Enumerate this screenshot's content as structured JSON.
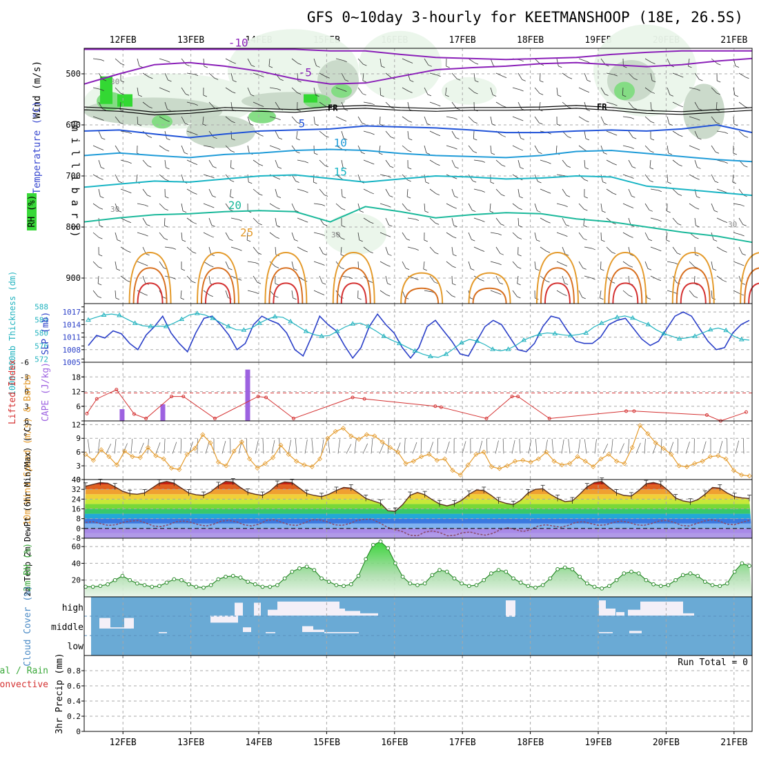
{
  "title": "GFS 0~10day 3-hourly for KEETMANSHOOP (18E, 26.5S)",
  "dates": [
    "12FEB",
    "13FEB",
    "14FEB",
    "15FEB",
    "16FEB",
    "17FEB",
    "18FEB",
    "19FEB",
    "20FEB",
    "21FEB"
  ],
  "colors": {
    "blue": "#2a3fc8",
    "cyan": "#22b3bf",
    "purple": "#9d62e0",
    "red": "#d43030",
    "orange": "#e49a2a",
    "green": "#39a839",
    "cloud": "#6aaad5",
    "grid": "#a8a8a8"
  },
  "chart_data": [
    {
      "type": "heatmap",
      "panel": "upper-air",
      "y_axis_label": "(m i l l i b a r s)",
      "y_ticks": [
        500,
        600,
        700,
        800,
        900
      ],
      "ylim": [
        450,
        950
      ],
      "legend_labels": {
        "rh": "RH (%)",
        "temperature": "Temperature (°C)",
        "wind": "Wind (m/s)"
      },
      "freezing_label": "FR",
      "rh_label": "30",
      "isotherms": [
        {
          "label": "-10",
          "color": "#8a1fb8",
          "p": [
            452,
            452,
            452,
            452,
            452,
            452,
            452,
            455,
            455,
            462,
            468,
            470,
            472,
            470,
            468,
            462,
            458,
            455,
            455,
            455
          ]
        },
        {
          "label": "-5",
          "color": "#8a1fb8",
          "p": [
            520,
            500,
            482,
            478,
            485,
            495,
            510,
            520,
            518,
            505,
            492,
            488,
            485,
            480,
            478,
            482,
            486,
            482,
            475,
            470
          ]
        },
        {
          "label": "5",
          "color": "#1f52d8",
          "p": [
            612,
            610,
            618,
            625,
            618,
            612,
            610,
            608,
            602,
            604,
            606,
            610,
            615,
            615,
            612,
            610,
            612,
            608,
            600,
            615
          ]
        },
        {
          "label": "10",
          "color": "#1e9bd8",
          "p": [
            660,
            655,
            660,
            664,
            658,
            655,
            650,
            648,
            650,
            656,
            660,
            662,
            664,
            660,
            652,
            650,
            656,
            662,
            668,
            672
          ]
        },
        {
          "label": "15",
          "color": "#16b4c4",
          "p": [
            722,
            716,
            710,
            712,
            706,
            700,
            698,
            705,
            712,
            706,
            700,
            702,
            706,
            704,
            700,
            702,
            720,
            726,
            732,
            738
          ]
        },
        {
          "label": "20",
          "color": "#19b89a",
          "p": [
            790,
            782,
            776,
            774,
            770,
            768,
            770,
            790,
            760,
            770,
            782,
            776,
            772,
            774,
            784,
            790,
            800,
            810,
            818,
            830
          ]
        }
      ],
      "freezing_level_mb": [
        565,
        568,
        575,
        572,
        566,
        568,
        570,
        564,
        562,
        566,
        568,
        566,
        566,
        565,
        562,
        566,
        572,
        574,
        570,
        566
      ]
    },
    {
      "type": "line",
      "panel": "slp-thickness",
      "ylabel_thickness": "1000-500mb Thickness (dm)",
      "ylabel_slp": "SLP (mb)",
      "y_ticks_thickness": [
        572,
        576,
        580,
        584,
        588
      ],
      "y_ticks_slp": [
        1005,
        1008,
        1011,
        1014,
        1017
      ],
      "ylim_slp": [
        1005,
        1019
      ],
      "series": [
        {
          "name": "SLP (mb)",
          "color": "#2a3fc8",
          "values": [
            1009.0,
            1011.4,
            1010.8,
            1012.5,
            1011.8,
            1009.5,
            1008.0,
            1011.5,
            1013.5,
            1016.0,
            1012.0,
            1009.5,
            1007.5,
            1012.0,
            1015.5,
            1016.0,
            1014.0,
            1011.5,
            1008.0,
            1009.5,
            1014.0,
            1016.0,
            1015.0,
            1014.2,
            1012.0,
            1008.0,
            1006.5,
            1011.0,
            1016.0,
            1014.0,
            1012.5,
            1009.0,
            1006.0,
            1008.5,
            1013.5,
            1016.5,
            1014.0,
            1012.0,
            1008.5,
            1006.0,
            1008.5,
            1013.5,
            1015.0,
            1012.5,
            1010.0,
            1007.0,
            1006.5,
            1010.0,
            1013.5,
            1015.0,
            1014.0,
            1011.0,
            1008.0,
            1007.5,
            1009.5,
            1013.5,
            1016.0,
            1015.5,
            1012.5,
            1010.0,
            1009.5,
            1009.5,
            1011.0,
            1014.0,
            1015.0,
            1015.5,
            1013.0,
            1010.5,
            1009.0,
            1010.0,
            1013.0,
            1016.0,
            1017.0,
            1016.0,
            1013.0,
            1010.0,
            1008.0,
            1008.5,
            1012.0,
            1014.0,
            1015.0
          ]
        },
        {
          "name": "1000-500mb Thickness (dm)",
          "color": "#22b3bf",
          "values": [
            584.0,
            584.8,
            585.5,
            585.8,
            585.4,
            584.2,
            583.0,
            582.2,
            582.0,
            582.1,
            582.0,
            583.0,
            584.2,
            585.5,
            586.0,
            585.5,
            584.5,
            583.2,
            582.0,
            581.0,
            580.9,
            581.5,
            583.0,
            584.2,
            585.0,
            584.8,
            583.5,
            582.0,
            580.5,
            579.5,
            579.0,
            579.2,
            580.5,
            581.8,
            582.8,
            583.0,
            582.0,
            580.6,
            579.0,
            577.8,
            576.8,
            575.6,
            574.5,
            573.5,
            572.8,
            572.5,
            573.5,
            575.2,
            577.0,
            578.0,
            577.5,
            576.4,
            575.0,
            574.5,
            575.0,
            576.2,
            577.8,
            578.8,
            579.6,
            580.0,
            579.8,
            579.4,
            579.2,
            579.5,
            580.0,
            581.8,
            583.0,
            584.0,
            584.8,
            585.2,
            584.6,
            583.5,
            582.6,
            581.0,
            579.8,
            579.0,
            578.2,
            578.5,
            579.0,
            580.0,
            581.0,
            581.5,
            580.8,
            579.0,
            578.0,
            577.8
          ]
        }
      ]
    },
    {
      "type": "bar",
      "panel": "stability",
      "ylabel_li": "Lifted Index",
      "ylabel_cape": "CAPE (J/kg)",
      "y_ticks_li": [
        -6,
        -3,
        0,
        3,
        6
      ],
      "y_ticks_cape": [
        6,
        12,
        18
      ],
      "series": [
        {
          "name": "CAPE (J/kg)",
          "color": "#9d62e0",
          "values": [
            [
              0.35,
              4.8
            ],
            [
              0.95,
              6.8
            ],
            [
              2.2,
              21.0
            ]
          ]
        },
        {
          "name": "Lifted Index",
          "color": "#d43030",
          "values": [
            [
              0,
              4.5
            ],
            [
              0.5,
              1.5
            ],
            [
              1.5,
              -0.4
            ],
            [
              2.4,
              4.6
            ],
            [
              3,
              5.5
            ],
            [
              4.3,
              1.0
            ],
            [
              4.9,
              1.0
            ],
            [
              6.5,
              5.5
            ],
            [
              8.7,
              1.0
            ],
            [
              9.1,
              1.2
            ],
            [
              10.5,
              5.5
            ],
            [
              13.5,
              1.2
            ],
            [
              14.1,
              1.5
            ],
            [
              17.7,
              3.0
            ],
            [
              18.0,
              3.2
            ],
            [
              20.3,
              5.5
            ],
            [
              21.6,
              1.0
            ],
            [
              21.9,
              1.0
            ],
            [
              23.5,
              5.5
            ],
            [
              27.4,
              4.0
            ],
            [
              27.8,
              4.0
            ],
            [
              31.5,
              4.8
            ],
            [
              32.2,
              6.0
            ],
            [
              33.5,
              4.2
            ]
          ]
        }
      ]
    },
    {
      "type": "line",
      "panel": "wind-10m",
      "ylabel": "10m Wind Speed (m/s) & Barbs",
      "y_ticks": [
        0,
        3,
        6,
        9,
        12
      ],
      "ylim": [
        0,
        12.8
      ],
      "series": [
        {
          "name": "10m Wind Speed (m/s)",
          "color": "#e49a2a",
          "values": [
            5.5,
            4.2,
            6.5,
            5.0,
            3.2,
            6.2,
            5.0,
            4.8,
            7.0,
            5.2,
            4.5,
            2.5,
            2.2,
            5.5,
            6.8,
            9.8,
            8.0,
            3.8,
            3.0,
            6.2,
            8.2,
            4.5,
            2.5,
            3.5,
            4.8,
            7.5,
            5.5,
            4.0,
            3.2,
            2.8,
            4.5,
            9.0,
            10.5,
            11.2,
            9.5,
            8.8,
            9.8,
            9.5,
            8.2,
            7.0,
            6.0,
            3.5,
            4.0,
            5.0,
            5.5,
            4.2,
            4.5,
            2.0,
            1.0,
            3.2,
            5.5,
            6.0,
            2.8,
            2.4,
            3.0,
            4.0,
            4.2,
            3.8,
            4.5,
            6.0,
            4.0,
            3.2,
            3.5,
            5.0,
            4.0,
            2.8,
            4.5,
            5.5,
            4.0,
            3.5,
            7.0,
            11.8,
            10.0,
            8.0,
            6.8,
            5.5,
            3.0,
            2.8,
            3.5,
            4.0,
            5.0,
            5.2,
            4.5,
            2.0,
            1.0,
            0.8
          ]
        }
      ]
    },
    {
      "type": "area",
      "panel": "temperature",
      "ylabel": "2m Temp 2m DewPt (6hr Min/Max) (°C)",
      "y_ticks": [
        -8,
        0,
        8,
        16,
        24,
        32,
        40
      ],
      "ylim": [
        -8,
        40
      ],
      "series": [
        {
          "name": "2m Temp",
          "color": "#5a3020",
          "values": [
            34.5,
            36.0,
            37.5,
            37.0,
            34.0,
            30.5,
            28.5,
            28.0,
            29.0,
            33.0,
            37.0,
            38.5,
            37.0,
            33.0,
            29.0,
            27.5,
            27.0,
            30.0,
            35.0,
            38.5,
            38.0,
            33.5,
            29.5,
            28.0,
            27.0,
            30.5,
            36.0,
            38.0,
            37.5,
            33.0,
            28.5,
            27.0,
            26.0,
            28.0,
            31.0,
            33.5,
            33.0,
            29.0,
            24.5,
            22.5,
            20.5,
            14.5,
            14.0,
            19.5,
            27.0,
            29.5,
            27.5,
            23.5,
            20.0,
            18.5,
            20.0,
            23.0,
            28.0,
            31.5,
            31.0,
            27.0,
            22.5,
            20.5,
            19.5,
            23.0,
            29.0,
            32.0,
            32.5,
            28.0,
            24.5,
            22.0,
            22.5,
            28.0,
            34.0,
            37.5,
            38.5,
            33.5,
            29.0,
            27.0,
            26.5,
            31.0,
            36.5,
            37.5,
            36.0,
            31.0,
            25.0,
            22.5,
            21.5,
            23.5,
            28.0,
            33.5,
            33.0,
            29.0,
            26.0,
            25.0,
            24.5
          ]
        },
        {
          "name": "2m DewPt",
          "color": "#8a4a6a",
          "values": [
            5.0,
            5.5,
            4.0,
            2.5,
            3.0,
            5.0,
            6.0,
            6.5,
            4.5,
            2.0,
            1.5,
            3.0,
            5.5,
            6.0,
            5.0,
            3.0,
            2.0,
            3.5,
            6.0,
            6.5,
            5.5,
            3.0,
            2.0,
            3.5,
            6.5,
            7.0,
            5.0,
            3.0,
            2.5,
            4.5,
            7.0,
            7.0,
            5.5,
            3.0,
            2.5,
            4.0,
            6.5,
            7.5,
            7.5,
            4.5,
            1.0,
            -1.0,
            -2.5,
            -5.5,
            -6.0,
            -3.0,
            -2.0,
            -3.5,
            -6.0,
            -5.5,
            -3.5,
            -3.0,
            -4.5,
            -5.5,
            -4.0,
            -1.0,
            0.5,
            -1.0,
            -2.5,
            -1.0,
            2.0,
            3.0,
            2.0,
            1.0,
            2.5,
            5.0,
            5.5,
            4.0,
            2.5,
            3.0,
            5.0,
            6.0,
            5.0,
            3.0,
            2.5,
            4.0,
            6.0,
            6.5,
            5.0,
            2.5,
            2.0,
            4.0,
            6.0,
            7.0,
            6.0,
            3.5,
            3.0,
            5.0,
            6.5
          ]
        }
      ]
    },
    {
      "type": "area",
      "panel": "rh",
      "ylabel": "2m RH (%)",
      "y_ticks": [
        20,
        40,
        60
      ],
      "ylim": [
        0,
        70
      ],
      "series": [
        {
          "name": "2m RH (%)",
          "color": "#39a839",
          "values": [
            12,
            12,
            13,
            15,
            20,
            25,
            20,
            16,
            14,
            12,
            13,
            17,
            21,
            20,
            15,
            12,
            11,
            14,
            21,
            24,
            25,
            23,
            18,
            15,
            12,
            12,
            14,
            22,
            30,
            34,
            36,
            32,
            22,
            18,
            14,
            13,
            15,
            25,
            45,
            62,
            66,
            58,
            40,
            24,
            16,
            14,
            16,
            26,
            32,
            30,
            22,
            16,
            13,
            14,
            20,
            28,
            32,
            30,
            22,
            17,
            13,
            11,
            14,
            22,
            33,
            35,
            33,
            24,
            16,
            12,
            10,
            13,
            20,
            28,
            30,
            28,
            20,
            15,
            13,
            14,
            20,
            26,
            28,
            25,
            18,
            14,
            13,
            16,
            30,
            40,
            37
          ]
        }
      ]
    },
    {
      "type": "heatmap",
      "panel": "cloud",
      "ylabel": "Cloud Cover (%)",
      "levels": [
        "high",
        "middle",
        "low"
      ],
      "color": "#6aaad5",
      "gaps": [
        [
          170,
          6,
          0,
          0.5
        ],
        [
          350,
          9,
          0,
          0.5
        ],
        [
          410,
          6,
          0.55,
          0.7
        ],
        [
          790,
          14,
          0,
          0.25
        ],
        [
          878,
          14,
          0.6,
          0.75
        ]
      ]
    },
    {
      "type": "bar",
      "panel": "precip",
      "ylabel": "3hr Precip (mm)",
      "legend_total_rain": "Total / Rain",
      "legend_convective": "Convective",
      "run_total": "Run Total = 0",
      "y_ticks": [
        0,
        0.2,
        0.4,
        0.6,
        0.8
      ],
      "ylim": [
        0,
        1.0
      ],
      "values": []
    }
  ]
}
